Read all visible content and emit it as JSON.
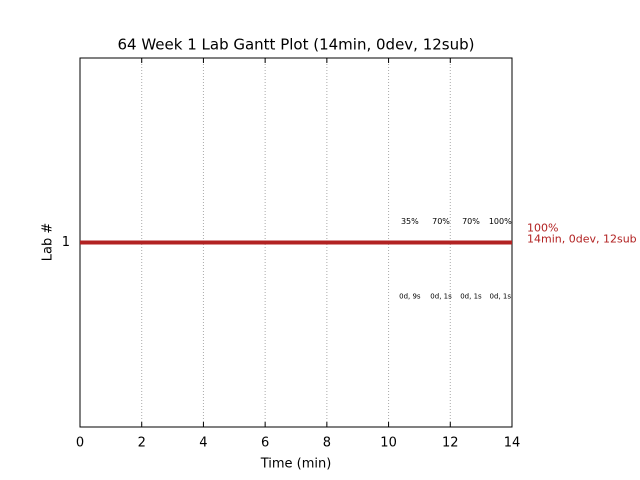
{
  "chart_data": {
    "type": "gantt",
    "title": "64 Week 1 Lab Gantt Plot (14min, 0dev, 12sub)",
    "x_label": "Time (min)",
    "y_label": "Lab #",
    "categories": [
      "1"
    ],
    "series": [
      {
        "color": "#b22222",
        "starts": [
          0
        ],
        "values": [
          14
        ]
      }
    ],
    "xlim": [
      0,
      14
    ],
    "xticks": [
      0,
      2,
      4,
      6,
      8,
      10,
      12,
      14
    ],
    "grid": true,
    "end_labels": [
      "100%",
      "14min, 0dev, 12sub"
    ],
    "milestones": [
      {
        "x": 10.69,
        "label": "35%",
        "detail": "0d, 9s"
      },
      {
        "x": 11.7,
        "label": "70%",
        "detail": "0d, 1s"
      },
      {
        "x": 12.67,
        "label": "70%",
        "detail": "0d, 1s"
      },
      {
        "x": 13.62,
        "label": "100%",
        "detail": "0d, 1s"
      }
    ]
  }
}
